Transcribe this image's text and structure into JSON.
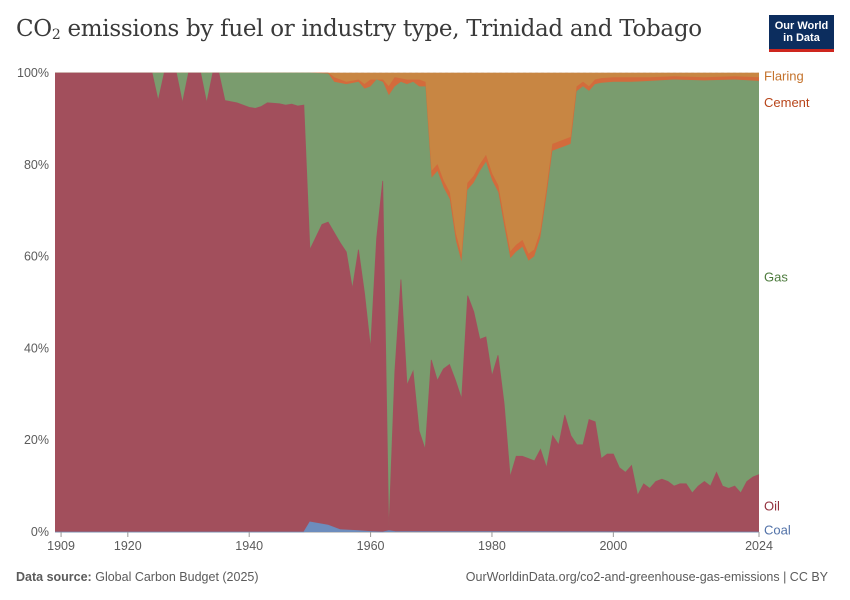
{
  "header": {
    "title_main": "CO",
    "title_sub": "2",
    "title_rest": " emissions by fuel or industry type, Trinidad and Tobago",
    "logo_line1": "Our World",
    "logo_line2": "in Data"
  },
  "footer": {
    "source_label": "Data source:",
    "source_value": "Global Carbon Budget (2025)",
    "url": "OurWorldinData.org/co2-and-greenhouse-gas-emissions | CC BY"
  },
  "chart_data": {
    "type": "area",
    "stacked": "percent",
    "title": "CO2 emissions by fuel or industry type, Trinidad and Tobago",
    "xlabel": "",
    "ylabel": "",
    "xlim": [
      1908,
      2024
    ],
    "ylim": [
      0,
      100
    ],
    "x_ticks": [
      {
        "value": 1909,
        "label": "1909"
      },
      {
        "value": 1920,
        "label": "1920"
      },
      {
        "value": 1940,
        "label": "1940"
      },
      {
        "value": 1960,
        "label": "1960"
      },
      {
        "value": 1980,
        "label": "1980"
      },
      {
        "value": 2000,
        "label": "2000"
      },
      {
        "value": 2024,
        "label": "2024"
      }
    ],
    "y_ticks": [
      {
        "value": 0,
        "label": "0%"
      },
      {
        "value": 20,
        "label": "20%"
      },
      {
        "value": 40,
        "label": "40%"
      },
      {
        "value": 60,
        "label": "60%"
      },
      {
        "value": 80,
        "label": "80%"
      },
      {
        "value": 100,
        "label": "100%"
      }
    ],
    "legend_position": "right",
    "series": [
      {
        "name": "Coal",
        "color": "#6d8dbd",
        "label_color": "#5272a8",
        "label_value": 0.3,
        "points": [
          [
            1908,
            0
          ],
          [
            1949,
            0
          ],
          [
            1950,
            2.2
          ],
          [
            1953,
            1.5
          ],
          [
            1955,
            0.5
          ],
          [
            1958,
            0.3
          ],
          [
            1960,
            0.1
          ],
          [
            1962,
            0
          ],
          [
            1963,
            0.3
          ],
          [
            1964,
            0.1
          ],
          [
            2024,
            0
          ]
        ]
      },
      {
        "name": "Oil",
        "color": "#a24f5c",
        "label_color": "#93303d",
        "label_value": 5.6,
        "points": [
          [
            1908,
            100
          ],
          [
            1924,
            100
          ],
          [
            1925,
            94
          ],
          [
            1926,
            100
          ],
          [
            1928,
            100
          ],
          [
            1929,
            93.5
          ],
          [
            1930,
            100
          ],
          [
            1932,
            100
          ],
          [
            1933,
            93.5
          ],
          [
            1934,
            100
          ],
          [
            1935,
            100
          ],
          [
            1936,
            94
          ],
          [
            1938,
            93.5
          ],
          [
            1940,
            92.5
          ],
          [
            1941,
            92.3
          ],
          [
            1942,
            92.7
          ],
          [
            1943,
            93.5
          ],
          [
            1945,
            93.3
          ],
          [
            1946,
            93
          ],
          [
            1947,
            93.2
          ],
          [
            1948,
            92.8
          ],
          [
            1949,
            93
          ],
          [
            1950,
            61.5
          ],
          [
            1952,
            67
          ],
          [
            1953,
            67.5
          ],
          [
            1955,
            63
          ],
          [
            1956,
            61
          ],
          [
            1957,
            53
          ],
          [
            1958,
            61.5
          ],
          [
            1959,
            52
          ],
          [
            1960,
            40
          ],
          [
            1961,
            64
          ],
          [
            1962,
            76.5
          ],
          [
            1963,
            0
          ],
          [
            1964,
            35
          ],
          [
            1965,
            55
          ],
          [
            1966,
            32
          ],
          [
            1967,
            35
          ],
          [
            1968,
            22
          ],
          [
            1969,
            18
          ],
          [
            1970,
            37.5
          ],
          [
            1971,
            33
          ],
          [
            1972,
            35.5
          ],
          [
            1973,
            36.5
          ],
          [
            1974,
            33
          ],
          [
            1975,
            29
          ],
          [
            1976,
            51.5
          ],
          [
            1977,
            48
          ],
          [
            1978,
            42
          ],
          [
            1979,
            42.5
          ],
          [
            1980,
            34
          ],
          [
            1981,
            38.5
          ],
          [
            1982,
            28
          ],
          [
            1983,
            12
          ],
          [
            1984,
            16.5
          ],
          [
            1985,
            16.5
          ],
          [
            1986,
            16
          ],
          [
            1987,
            15.5
          ],
          [
            1988,
            18
          ],
          [
            1989,
            14
          ],
          [
            1990,
            21
          ],
          [
            1991,
            19
          ],
          [
            1992,
            25.5
          ],
          [
            1993,
            21
          ],
          [
            1994,
            19
          ],
          [
            1995,
            19
          ],
          [
            1996,
            24.5
          ],
          [
            1997,
            24
          ],
          [
            1998,
            16
          ],
          [
            1999,
            17
          ],
          [
            2000,
            17
          ],
          [
            2001,
            14
          ],
          [
            2002,
            13
          ],
          [
            2003,
            14.5
          ],
          [
            2004,
            8
          ],
          [
            2005,
            10.5
          ],
          [
            2006,
            9.5
          ],
          [
            2007,
            11
          ],
          [
            2008,
            11.5
          ],
          [
            2009,
            11
          ],
          [
            2010,
            10
          ],
          [
            2011,
            10.5
          ],
          [
            2012,
            10.5
          ],
          [
            2013,
            8.5
          ],
          [
            2014,
            10
          ],
          [
            2015,
            11
          ],
          [
            2016,
            10
          ],
          [
            2017,
            13
          ],
          [
            2018,
            10
          ],
          [
            2019,
            9.5
          ],
          [
            2020,
            10
          ],
          [
            2021,
            8.5
          ],
          [
            2022,
            11
          ],
          [
            2023,
            12
          ],
          [
            2024,
            12.5
          ]
        ]
      },
      {
        "name": "Gas",
        "color": "#7a9c6e",
        "label_color": "#4c7a3c",
        "label_value": 55.5,
        "points": [
          [
            1908,
            100
          ],
          [
            1924,
            100
          ],
          [
            1925,
            100
          ],
          [
            1936,
            100
          ],
          [
            1945,
            100
          ],
          [
            1949,
            100
          ],
          [
            1950,
            100
          ],
          [
            1953,
            99.8
          ],
          [
            1954,
            98
          ],
          [
            1956,
            97.5
          ],
          [
            1958,
            98
          ],
          [
            1959,
            96.5
          ],
          [
            1960,
            97
          ],
          [
            1961,
            98.5
          ],
          [
            1962,
            98
          ],
          [
            1963,
            95
          ],
          [
            1964,
            97
          ],
          [
            1965,
            98
          ],
          [
            1966,
            97.5
          ],
          [
            1967,
            98
          ],
          [
            1968,
            97
          ],
          [
            1969,
            97
          ],
          [
            1970,
            77
          ],
          [
            1971,
            78.5
          ],
          [
            1972,
            75
          ],
          [
            1973,
            72.5
          ],
          [
            1974,
            63.5
          ],
          [
            1975,
            58.5
          ],
          [
            1976,
            74.5
          ],
          [
            1977,
            76
          ],
          [
            1978,
            78.5
          ],
          [
            1979,
            80.5
          ],
          [
            1980,
            76.5
          ],
          [
            1981,
            74
          ],
          [
            1982,
            66.5
          ],
          [
            1983,
            59.5
          ],
          [
            1984,
            61
          ],
          [
            1985,
            62
          ],
          [
            1986,
            59
          ],
          [
            1987,
            60
          ],
          [
            1988,
            64
          ],
          [
            1989,
            73
          ],
          [
            1990,
            83
          ],
          [
            1991,
            83.5
          ],
          [
            1992,
            84
          ],
          [
            1993,
            84.5
          ],
          [
            1994,
            96
          ],
          [
            1995,
            97
          ],
          [
            1996,
            96
          ],
          [
            1997,
            97.5
          ],
          [
            1998,
            97.8
          ],
          [
            2000,
            98
          ],
          [
            2003,
            98
          ],
          [
            2006,
            98.2
          ],
          [
            2010,
            98.5
          ],
          [
            2015,
            98.3
          ],
          [
            2020,
            98.5
          ],
          [
            2024,
            98.2
          ]
        ]
      },
      {
        "name": "Cement",
        "color": "#d36b3c",
        "label_color": "#b8451a",
        "label_value": 93.5,
        "points": [
          [
            1908,
            100
          ],
          [
            1953,
            100
          ],
          [
            1954,
            99
          ],
          [
            1956,
            98
          ],
          [
            1958,
            98.5
          ],
          [
            1959,
            97.5
          ],
          [
            1960,
            98.5
          ],
          [
            1962,
            98.5
          ],
          [
            1963,
            97
          ],
          [
            1964,
            99
          ],
          [
            1966,
            98.5
          ],
          [
            1968,
            98.5
          ],
          [
            1969,
            98
          ],
          [
            1970,
            78.5
          ],
          [
            1971,
            80
          ],
          [
            1972,
            76.5
          ],
          [
            1973,
            74
          ],
          [
            1974,
            65
          ],
          [
            1975,
            60
          ],
          [
            1976,
            76
          ],
          [
            1977,
            77.5
          ],
          [
            1978,
            80
          ],
          [
            1979,
            82
          ],
          [
            1980,
            78
          ],
          [
            1981,
            75.5
          ],
          [
            1982,
            68
          ],
          [
            1983,
            61
          ],
          [
            1984,
            62.5
          ],
          [
            1985,
            63.5
          ],
          [
            1986,
            60.5
          ],
          [
            1987,
            61.5
          ],
          [
            1988,
            65.5
          ],
          [
            1989,
            74.5
          ],
          [
            1990,
            84.5
          ],
          [
            1991,
            85
          ],
          [
            1992,
            85.5
          ],
          [
            1993,
            86
          ],
          [
            1994,
            97
          ],
          [
            1995,
            98
          ],
          [
            1996,
            97
          ],
          [
            1997,
            98.5
          ],
          [
            1998,
            98.8
          ],
          [
            2000,
            99
          ],
          [
            2003,
            99
          ],
          [
            2006,
            99
          ],
          [
            2010,
            99.2
          ],
          [
            2015,
            99
          ],
          [
            2020,
            99.2
          ],
          [
            2024,
            99
          ]
        ]
      },
      {
        "name": "Flaring",
        "color": "#c88643",
        "label_color": "#c4722b",
        "label_value": 99.2,
        "points": [
          [
            1908,
            100
          ],
          [
            2024,
            100
          ]
        ]
      }
    ]
  }
}
